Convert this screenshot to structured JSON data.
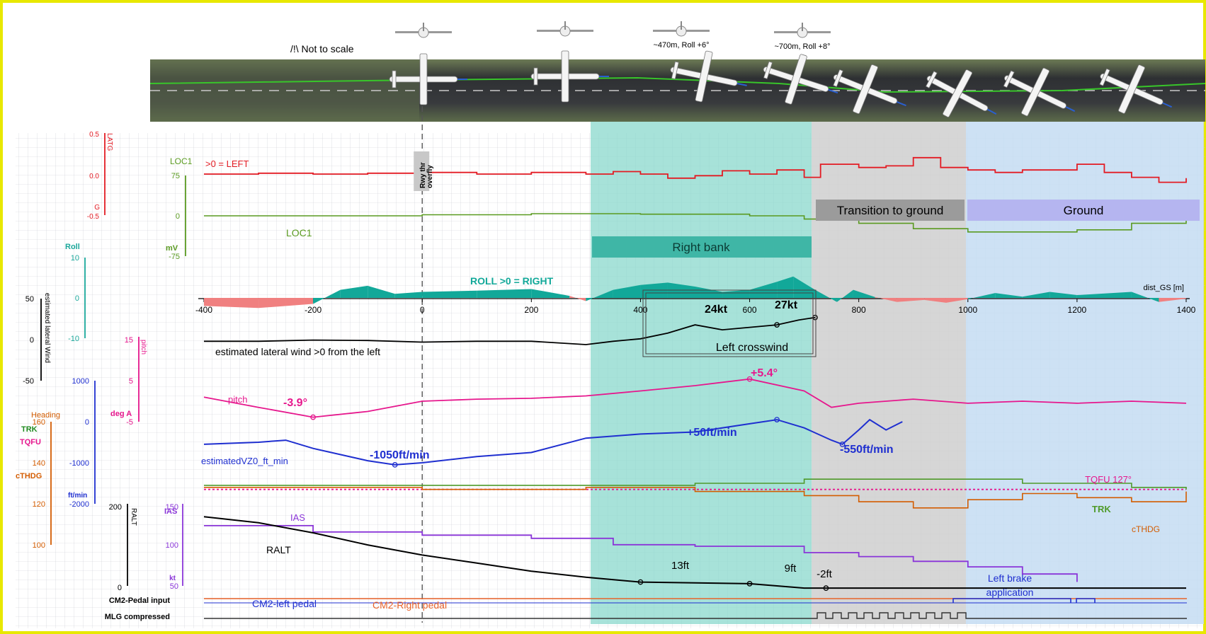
{
  "header": {
    "not_to_scale": "/!\\ Not to scale",
    "plane_note_1": "~470m, Roll +6°",
    "plane_note_2": "~700m, Roll +8°"
  },
  "phases": {
    "transition": "Transition to ground",
    "ground": "Ground",
    "right_bank": "Right bank"
  },
  "markers": {
    "rwy_thr": "Rwy thr",
    "overfly": "overfly",
    "left_crosswind": "Left crosswind"
  },
  "axis_labels": {
    "latg_name": "LATG",
    "latg_ticks": [
      "0.5",
      "0.0",
      "-0.5"
    ],
    "latg_unit": "G",
    "loc1_name": "LOC1",
    "loc1_ticks": [
      "75",
      "0",
      "-75"
    ],
    "loc1_unit": "mV",
    "roll_name": "Roll",
    "roll_ticks": [
      "10",
      "0",
      "-10"
    ],
    "wind_name": "estimated lateral Wind",
    "wind_ticks": [
      "50",
      "0",
      "-50"
    ],
    "pitch_name": "pitch",
    "pitch_ticks": [
      "15",
      "5",
      "-5"
    ],
    "pitch_unit": "deg A",
    "vz_ticks": [
      "1000",
      "0",
      "-1000",
      "-2000"
    ],
    "vz_unit": "ft/min",
    "heading_name": "Heading",
    "heading_sub": [
      "TRK",
      "TQFU",
      "cTHDG"
    ],
    "heading_ticks": [
      "160",
      "140",
      "120",
      "100"
    ],
    "ralt_name": "RALT",
    "ralt_ticks": [
      "200",
      "0"
    ],
    "ias_name": "IAS",
    "ias_ticks": [
      "150",
      "100",
      "50"
    ],
    "ias_unit": "kt",
    "pedal_row": "CM2-Pedal input",
    "mlg_row": "MLG compressed"
  },
  "chart_data": {
    "type": "line",
    "xlabel": "dist_GS [m]",
    "xlim": [
      -400,
      1400
    ],
    "x_ticks": [
      -400,
      -200,
      0,
      200,
      400,
      600,
      800,
      1000,
      1200,
      1400
    ],
    "grid": true,
    "series_labels": {
      "latg_note": ">0 = LEFT",
      "loc1": "LOC1",
      "roll": "ROLL >0 = RIGHT",
      "wind": "estimated lateral wind >0 from the left",
      "pitch": "pitch",
      "vz": "estimatedVZ0_ft_min",
      "tqfu": "TQFU 127°",
      "trk": "TRK",
      "cthdg": "cTHDG",
      "ias": "IAS",
      "ralt": "RALT",
      "left_pedal": "CM2-left pedal",
      "right_pedal": "CM2-Right pedal",
      "brake": "Left brake application"
    },
    "annotations": {
      "wind_24": "24kt",
      "wind_27": "27kt",
      "pitch_min": "-3.9°",
      "pitch_max": "+5.4°",
      "vz_min": "-1050ft/min",
      "vz_max": "+50ft/min",
      "vz_flare": "-550ft/min",
      "ralt_13": "13ft",
      "ralt_9": "9ft",
      "ralt_m2": "-2ft"
    },
    "series": {
      "latg": [
        [
          -400,
          0.0
        ],
        [
          -300,
          0.01
        ],
        [
          -200,
          0.0
        ],
        [
          -100,
          0.01
        ],
        [
          0,
          0.02
        ],
        [
          100,
          0.0
        ],
        [
          200,
          0.02
        ],
        [
          300,
          0.0
        ],
        [
          350,
          0.03
        ],
        [
          400,
          0.0
        ],
        [
          450,
          -0.05
        ],
        [
          500,
          -0.02
        ],
        [
          550,
          0.04
        ],
        [
          600,
          0.0
        ],
        [
          650,
          0.05
        ],
        [
          700,
          -0.04
        ],
        [
          730,
          0.12
        ],
        [
          800,
          0.08
        ],
        [
          850,
          0.1
        ],
        [
          900,
          0.2
        ],
        [
          950,
          0.08
        ],
        [
          1000,
          0.05
        ],
        [
          1050,
          0.02
        ],
        [
          1100,
          0.05
        ],
        [
          1200,
          0.12
        ],
        [
          1250,
          0.02
        ],
        [
          1300,
          -0.04
        ],
        [
          1350,
          -0.1
        ],
        [
          1400,
          -0.05
        ]
      ],
      "loc1": [
        [
          -400,
          0
        ],
        [
          -200,
          0
        ],
        [
          0,
          2
        ],
        [
          200,
          4
        ],
        [
          400,
          3
        ],
        [
          600,
          0
        ],
        [
          700,
          -6
        ],
        [
          800,
          -14
        ],
        [
          900,
          -24
        ],
        [
          1000,
          -30
        ],
        [
          1100,
          -30
        ],
        [
          1200,
          -26
        ],
        [
          1300,
          -14
        ],
        [
          1400,
          4
        ]
      ],
      "roll": [
        [
          -400,
          -2
        ],
        [
          -300,
          -2.5
        ],
        [
          -200,
          -1.5
        ],
        [
          -150,
          2
        ],
        [
          -100,
          3
        ],
        [
          -50,
          1
        ],
        [
          0,
          1.5
        ],
        [
          100,
          1.8
        ],
        [
          200,
          2.2
        ],
        [
          270,
          0.5
        ],
        [
          300,
          -0.8
        ],
        [
          350,
          2
        ],
        [
          400,
          3.2
        ],
        [
          450,
          3.8
        ],
        [
          500,
          2.8
        ],
        [
          550,
          1.5
        ],
        [
          600,
          2
        ],
        [
          650,
          4
        ],
        [
          680,
          5.3
        ],
        [
          720,
          2
        ],
        [
          760,
          -1
        ],
        [
          790,
          2
        ],
        [
          830,
          0.2
        ],
        [
          870,
          -1
        ],
        [
          920,
          -0.5
        ],
        [
          960,
          -1.2
        ],
        [
          1000,
          -0.3
        ],
        [
          1050,
          1.2
        ],
        [
          1100,
          0.3
        ],
        [
          1150,
          1.5
        ],
        [
          1200,
          0.7
        ],
        [
          1300,
          1.5
        ],
        [
          1350,
          -1
        ],
        [
          1400,
          -0.2
        ]
      ],
      "wind": [
        [
          -400,
          -2
        ],
        [
          -300,
          -2
        ],
        [
          -200,
          -0.5
        ],
        [
          -100,
          -1
        ],
        [
          0,
          -3
        ],
        [
          100,
          -2
        ],
        [
          200,
          -2
        ],
        [
          300,
          -6
        ],
        [
          350,
          -2
        ],
        [
          400,
          1
        ],
        [
          450,
          8
        ],
        [
          500,
          18
        ],
        [
          550,
          12
        ],
        [
          600,
          15
        ],
        [
          650,
          18
        ],
        [
          690,
          24
        ],
        [
          720,
          27
        ]
      ],
      "pitch": [
        [
          -400,
          1
        ],
        [
          -300,
          -1.5
        ],
        [
          -200,
          -3.9
        ],
        [
          -100,
          -2.5
        ],
        [
          0,
          0
        ],
        [
          100,
          0.5
        ],
        [
          200,
          0.7
        ],
        [
          300,
          1.3
        ],
        [
          400,
          2.5
        ],
        [
          500,
          3.8
        ],
        [
          600,
          5.4
        ],
        [
          700,
          2.5
        ],
        [
          750,
          -1.5
        ],
        [
          800,
          -0.5
        ],
        [
          900,
          0.5
        ],
        [
          1000,
          -0.5
        ],
        [
          1100,
          0
        ],
        [
          1200,
          -0.5
        ],
        [
          1300,
          0
        ],
        [
          1400,
          -0.5
        ]
      ],
      "vz": [
        [
          -400,
          -550
        ],
        [
          -300,
          -500
        ],
        [
          -250,
          -450
        ],
        [
          -200,
          -650
        ],
        [
          -100,
          -950
        ],
        [
          -50,
          -1050
        ],
        [
          0,
          -1000
        ],
        [
          100,
          -850
        ],
        [
          200,
          -750
        ],
        [
          300,
          -400
        ],
        [
          400,
          -300
        ],
        [
          500,
          -250
        ],
        [
          600,
          -50
        ],
        [
          650,
          50
        ],
        [
          700,
          -150
        ],
        [
          750,
          -450
        ],
        [
          770,
          -550
        ],
        [
          800,
          -200
        ],
        [
          820,
          50
        ],
        [
          850,
          -200
        ],
        [
          880,
          0
        ]
      ],
      "tqfu": [
        [
          -400,
          127
        ],
        [
          1400,
          127
        ]
      ],
      "trk": [
        [
          -400,
          129
        ],
        [
          200,
          129
        ],
        [
          500,
          130
        ],
        [
          700,
          132
        ],
        [
          900,
          132
        ],
        [
          1100,
          130
        ],
        [
          1300,
          128
        ],
        [
          1400,
          127
        ]
      ],
      "cthdg": [
        [
          -400,
          128
        ],
        [
          0,
          127
        ],
        [
          300,
          128
        ],
        [
          500,
          126
        ],
        [
          700,
          124
        ],
        [
          800,
          121
        ],
        [
          900,
          118
        ],
        [
          1000,
          122
        ],
        [
          1100,
          125
        ],
        [
          1200,
          123
        ],
        [
          1300,
          121
        ],
        [
          1400,
          126
        ]
      ],
      "ias": [
        [
          -400,
          126
        ],
        [
          -200,
          118
        ],
        [
          0,
          114
        ],
        [
          200,
          110
        ],
        [
          350,
          102
        ],
        [
          500,
          100
        ],
        [
          700,
          92
        ],
        [
          800,
          87
        ],
        [
          900,
          81
        ],
        [
          1000,
          74
        ],
        [
          1100,
          65
        ],
        [
          1200,
          55
        ]
      ],
      "ralt": [
        [
          -400,
          175
        ],
        [
          -300,
          160
        ],
        [
          -200,
          135
        ],
        [
          -100,
          105
        ],
        [
          0,
          80
        ],
        [
          100,
          60
        ],
        [
          200,
          40
        ],
        [
          300,
          25
        ],
        [
          400,
          13
        ],
        [
          600,
          9
        ],
        [
          700,
          -2
        ],
        [
          1400,
          -2
        ]
      ]
    }
  }
}
